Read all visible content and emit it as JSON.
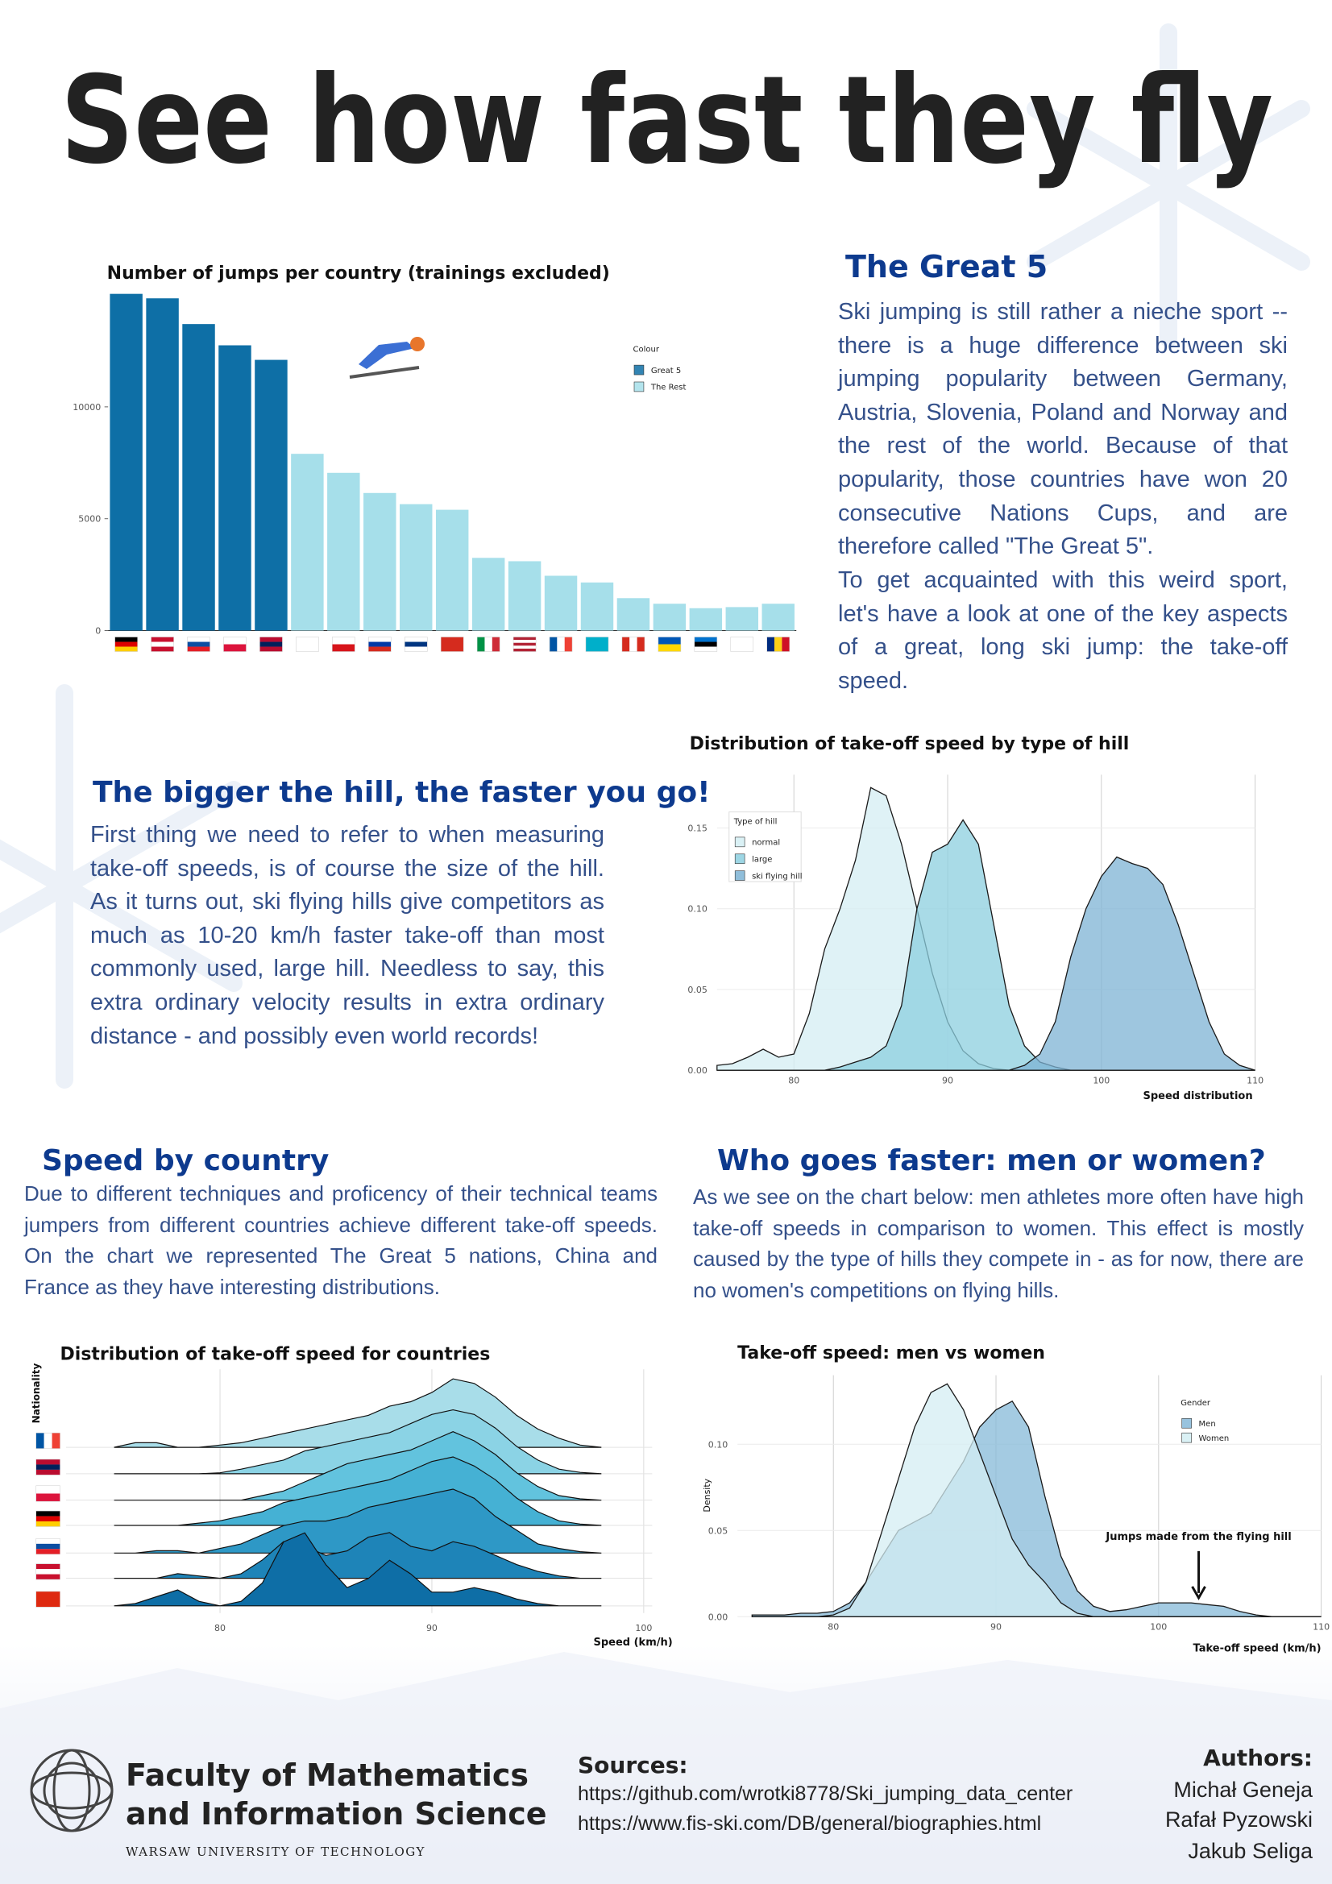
{
  "header": {
    "title": "See how fast they fly"
  },
  "sections": [
    {
      "heading": "The Great 5",
      "paragraphs": [
        "Ski jumping is still rather a nieche sport -- there is a huge difference between ski jumping popularity between Germany, Austria, Slovenia, Poland and Norway and the rest of the world. Because of that popularity, those countries have won 20 consecutive Nations Cups, and are therefore called \"The Great 5\".",
        "To get acquainted with this weird sport, let's have a look at one of the key aspects of a great, long ski jump: the take-off speed."
      ]
    },
    {
      "heading": "The bigger the hill, the faster you go!",
      "paragraphs": [
        "First thing we need to refer to when measuring take-off speeds, is of course the size of the hill. As it turns out, ski flying hills give competitors as much as 10-20 km/h faster take-off than most commonly used, large hill. Needless to say, this extra ordinary velocity results in extra ordinary distance - and possibly even world records!"
      ]
    },
    {
      "heading": "Speed by country",
      "paragraphs": [
        "Due to different techniques and proficency of their technical teams jumpers from different countries achieve different take-off speeds. On the chart we represented The Great 5 nations, China and France as they have interesting distributions."
      ]
    },
    {
      "heading": "Who goes faster: men or women?",
      "paragraphs": [
        "As we see on the chart below: men athletes more often have high take-off speeds in comparison to women. This effect is mostly caused by the type of hills they compete in - as for now, there are no women's competitions on flying hills."
      ]
    }
  ],
  "chart_data": [
    {
      "type": "bar",
      "title": "Number of jumps per country (trainings excluded)",
      "legend_title": "Colour",
      "categories": [
        null,
        null,
        null,
        null,
        null,
        null,
        null,
        null,
        null,
        null,
        null,
        null,
        null,
        null,
        null,
        null,
        null,
        null,
        null
      ],
      "series": [
        {
          "name": "Great 5",
          "color": "#0e6fa6",
          "values": [
            15050,
            14850,
            13700,
            12750,
            12100,
            null,
            null,
            null,
            null,
            null,
            null,
            null,
            null,
            null,
            null,
            null,
            null,
            null,
            null
          ]
        },
        {
          "name": "The Rest",
          "color": "#a6dfea",
          "values": [
            null,
            null,
            null,
            null,
            null,
            7900,
            7050,
            6150,
            5650,
            5400,
            3250,
            3100,
            2450,
            2150,
            1450,
            1200,
            1000,
            1050,
            1200
          ]
        }
      ],
      "ylim": [
        0,
        15300
      ],
      "yticks": [
        0,
        5000,
        10000
      ]
    },
    {
      "type": "density",
      "title": "Distribution of take-off speed by type of hill",
      "x_label": "Speed distribution",
      "legend_title": "Type of hill",
      "x": [
        75,
        76,
        77,
        78,
        79,
        80,
        81,
        82,
        83,
        84,
        85,
        86,
        87,
        88,
        89,
        90,
        91,
        92,
        93,
        94,
        95,
        96,
        97,
        98,
        99,
        100,
        101,
        102,
        103,
        104,
        105,
        106,
        107,
        108,
        109,
        110
      ],
      "series": [
        {
          "name": "normal",
          "color": "#d4eef3",
          "values": [
            0.003,
            0.004,
            0.008,
            0.013,
            0.008,
            0.01,
            0.035,
            0.075,
            0.1,
            0.13,
            0.175,
            0.17,
            0.14,
            0.1,
            0.06,
            0.03,
            0.012,
            0.004,
            0.001,
            0,
            0,
            0,
            0,
            0,
            0,
            0,
            0,
            0,
            0,
            0,
            0,
            0,
            0,
            0,
            0,
            0
          ]
        },
        {
          "name": "large",
          "color": "#8ccfdf",
          "values": [
            0,
            0,
            0,
            0,
            0,
            0,
            0,
            0,
            0.002,
            0.005,
            0.008,
            0.015,
            0.04,
            0.1,
            0.135,
            0.14,
            0.155,
            0.14,
            0.09,
            0.04,
            0.015,
            0.005,
            0.002,
            0,
            0,
            0,
            0,
            0,
            0,
            0,
            0,
            0,
            0,
            0,
            0,
            0
          ]
        },
        {
          "name": "ski flying hill",
          "color": "#7db3d4",
          "values": [
            0,
            0,
            0,
            0,
            0,
            0,
            0,
            0,
            0,
            0,
            0,
            0,
            0,
            0,
            0,
            0,
            0,
            0,
            0,
            0,
            0.003,
            0.01,
            0.03,
            0.07,
            0.1,
            0.12,
            0.132,
            0.128,
            0.125,
            0.115,
            0.09,
            0.06,
            0.03,
            0.01,
            0.003,
            0
          ]
        }
      ],
      "xlim": [
        75,
        110
      ],
      "ylim": [
        0,
        0.183
      ],
      "xticks": [
        80,
        90,
        100,
        110
      ],
      "yticks": [
        {
          "value": 0,
          "label": "0.00"
        },
        0.05,
        {
          "value": 0.1,
          "label": "0.10"
        },
        0.15
      ],
      "grid": true
    },
    {
      "type": "ridgeline",
      "title": "Distribution of take-off speed for countries",
      "x_label": "Speed (km/h)",
      "y_label": "Nationality",
      "x": [
        75,
        76,
        77,
        78,
        79,
        80,
        81,
        82,
        83,
        84,
        85,
        86,
        87,
        88,
        89,
        90,
        91,
        92,
        93,
        94,
        95,
        96,
        97,
        98
      ],
      "series": [
        {
          "color": "#a8dde9",
          "values": [
            0,
            0.01,
            0.01,
            0,
            0,
            0.005,
            0.01,
            0.02,
            0.03,
            0.04,
            0.05,
            0.06,
            0.07,
            0.09,
            0.1,
            0.12,
            0.15,
            0.14,
            0.11,
            0.07,
            0.04,
            0.02,
            0.005,
            0
          ]
        },
        {
          "color": "#8bd3e5",
          "values": [
            0,
            0,
            0,
            0,
            0,
            0.002,
            0.01,
            0.02,
            0.03,
            0.05,
            0.06,
            0.07,
            0.08,
            0.09,
            0.11,
            0.13,
            0.14,
            0.13,
            0.1,
            0.06,
            0.03,
            0.01,
            0.003,
            0
          ]
        },
        {
          "color": "#62c3de",
          "values": [
            0,
            0,
            0,
            0,
            0,
            0,
            0,
            0.01,
            0.02,
            0.04,
            0.06,
            0.08,
            0.09,
            0.1,
            0.11,
            0.13,
            0.15,
            0.13,
            0.1,
            0.06,
            0.03,
            0.01,
            0.003,
            0
          ]
        },
        {
          "color": "#45b1d4",
          "values": [
            0,
            0,
            0,
            0,
            0.005,
            0.01,
            0.02,
            0.03,
            0.05,
            0.06,
            0.07,
            0.08,
            0.09,
            0.1,
            0.12,
            0.14,
            0.15,
            0.13,
            0.1,
            0.06,
            0.03,
            0.01,
            0.003,
            0
          ]
        },
        {
          "color": "#2e98c6",
          "values": [
            0,
            0,
            0.005,
            0.005,
            0,
            0.01,
            0.02,
            0.04,
            0.06,
            0.07,
            0.07,
            0.08,
            0.1,
            0.11,
            0.12,
            0.13,
            0.14,
            0.12,
            0.08,
            0.05,
            0.02,
            0.01,
            0.003,
            0
          ]
        },
        {
          "color": "#1e84b8",
          "values": [
            0,
            0,
            0,
            0.01,
            0.005,
            0,
            0.01,
            0.04,
            0.08,
            0.07,
            0.05,
            0.06,
            0.09,
            0.1,
            0.07,
            0.06,
            0.08,
            0.07,
            0.05,
            0.03,
            0.015,
            0.005,
            0,
            0
          ]
        },
        {
          "color": "#0e6ea6",
          "values": [
            0,
            0.005,
            0.02,
            0.035,
            0.01,
            0,
            0.01,
            0.05,
            0.14,
            0.16,
            0.09,
            0.04,
            0.06,
            0.1,
            0.07,
            0.03,
            0.03,
            0.04,
            0.03,
            0.015,
            0.005,
            0,
            0,
            0
          ]
        }
      ],
      "xlim": [
        75,
        100.4
      ],
      "xticks": [
        80,
        90,
        100
      ],
      "grid": true
    },
    {
      "type": "density",
      "title": "Take-off speed: men vs women",
      "x_label": "Take-off speed (km/h)",
      "y_label": "Density",
      "legend_title": "Gender",
      "annotation": "Jumps made from the flying hill",
      "x": [
        75,
        76,
        77,
        78,
        79,
        80,
        81,
        82,
        83,
        84,
        85,
        86,
        87,
        88,
        89,
        90,
        91,
        92,
        93,
        94,
        95,
        96,
        97,
        98,
        99,
        100,
        101,
        102,
        103,
        104,
        105,
        106,
        107,
        108,
        109,
        110
      ],
      "series": [
        {
          "name": "Men",
          "color": "#86b9d8",
          "values": [
            0.001,
            0.001,
            0.001,
            0.002,
            0.002,
            0.003,
            0.008,
            0.02,
            0.035,
            0.05,
            0.055,
            0.06,
            0.075,
            0.09,
            0.11,
            0.12,
            0.125,
            0.11,
            0.07,
            0.035,
            0.015,
            0.006,
            0.003,
            0.004,
            0.006,
            0.008,
            0.008,
            0.008,
            0.007,
            0.006,
            0.003,
            0.001,
            0,
            0,
            0,
            0
          ]
        },
        {
          "name": "Women",
          "color": "#d4eef3",
          "values": [
            0,
            0,
            0,
            0,
            0,
            0.001,
            0.005,
            0.02,
            0.05,
            0.08,
            0.11,
            0.13,
            0.135,
            0.12,
            0.095,
            0.07,
            0.045,
            0.03,
            0.02,
            0.008,
            0.002,
            0,
            0,
            0,
            0,
            0,
            0,
            0,
            0,
            0,
            0,
            0,
            0,
            0,
            0,
            0
          ]
        }
      ],
      "xlim": [
        74.1,
        110
      ],
      "ylim": [
        0,
        0.14
      ],
      "xticks": [
        80,
        90,
        100,
        110
      ],
      "yticks": [
        {
          "value": 0,
          "label": "0.00"
        },
        0.05,
        {
          "value": 0.1,
          "label": "0.10"
        }
      ],
      "grid": true
    }
  ],
  "footer": {
    "institution": [
      "Faculty of Mathematics",
      "and Information Science"
    ],
    "university": "WARSAW UNIVERSITY OF TECHNOLOGY",
    "sources": {
      "heading": "Sources:",
      "links": [
        "https://github.com/wrotki8778/Ski_jumping_data_center",
        "https://www.fis-ski.com/DB/general/biographies.html"
      ]
    },
    "authors": {
      "heading": "Authors:",
      "names": [
        "Michał Geneja",
        "Rafał Pyzowski",
        "Jakub Seliga"
      ]
    }
  }
}
